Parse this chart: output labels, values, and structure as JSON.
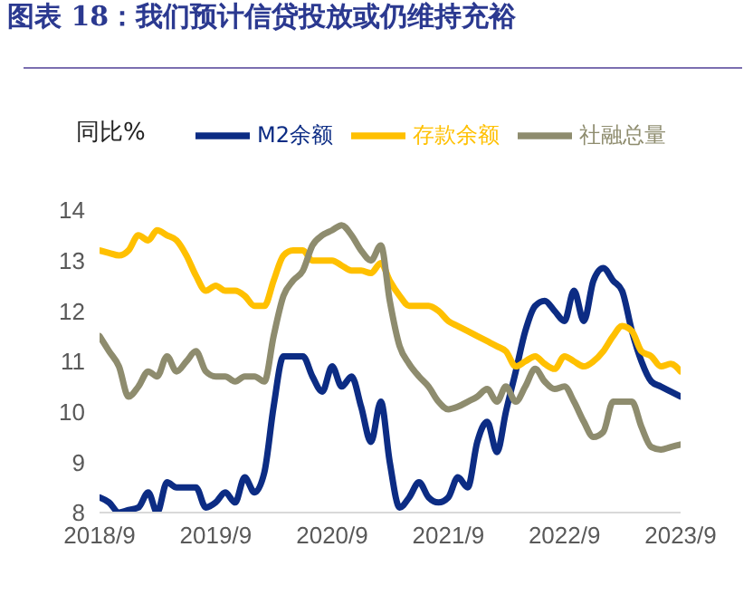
{
  "chart_data": {
    "type": "line",
    "title": "图表 18：我们预计信贷投放或仍维持充裕",
    "ylabel": "同比%",
    "x": [
      "2018-09",
      "2018-10",
      "2018-11",
      "2018-12",
      "2019-01",
      "2019-02",
      "2019-03",
      "2019-04",
      "2019-05",
      "2019-06",
      "2019-07",
      "2019-08",
      "2019-09",
      "2019-10",
      "2019-11",
      "2019-12",
      "2020-01",
      "2020-02",
      "2020-03",
      "2020-04",
      "2020-05",
      "2020-06",
      "2020-07",
      "2020-08",
      "2020-09",
      "2020-10",
      "2020-11",
      "2020-12",
      "2021-01",
      "2021-02",
      "2021-03",
      "2021-04",
      "2021-05",
      "2021-06",
      "2021-07",
      "2021-08",
      "2021-09",
      "2021-10",
      "2021-11",
      "2021-12",
      "2022-01",
      "2022-02",
      "2022-03",
      "2022-04",
      "2022-05",
      "2022-06",
      "2022-07",
      "2022-08",
      "2022-09",
      "2022-10",
      "2022-11",
      "2022-12",
      "2023-01",
      "2023-02",
      "2023-03",
      "2023-04",
      "2023-05",
      "2023-06",
      "2023-07",
      "2023-08",
      "2023-09"
    ],
    "series": [
      {
        "name": "M2余额",
        "color": "#0c2c84",
        "values": [
          8.3,
          8.2,
          8.0,
          8.05,
          8.1,
          8.4,
          8.0,
          8.6,
          8.5,
          8.5,
          8.5,
          8.1,
          8.2,
          8.4,
          8.2,
          8.7,
          8.4,
          8.8,
          10.1,
          11.1,
          11.1,
          11.1,
          10.7,
          10.4,
          10.9,
          10.5,
          10.7,
          10.1,
          9.4,
          10.2,
          9.0,
          8.1,
          8.3,
          8.6,
          8.3,
          8.2,
          8.3,
          8.7,
          8.5,
          9.4,
          9.8,
          9.2,
          10.0,
          10.8,
          11.6,
          12.1,
          12.2,
          12.0,
          11.8,
          12.4,
          11.8,
          12.6,
          12.85,
          12.6,
          12.4,
          11.6,
          11.0,
          10.6,
          10.5,
          10.4,
          10.3
        ]
      },
      {
        "name": "存款余额",
        "color": "#ffc000",
        "values": [
          13.2,
          13.15,
          13.1,
          13.2,
          13.5,
          13.4,
          13.6,
          13.5,
          13.4,
          13.1,
          12.7,
          12.4,
          12.5,
          12.4,
          12.4,
          12.3,
          12.1,
          12.1,
          12.6,
          13.1,
          13.2,
          13.2,
          13.0,
          13.0,
          13.0,
          12.9,
          12.8,
          12.8,
          12.75,
          12.95,
          12.6,
          12.3,
          12.1,
          12.1,
          12.1,
          12.0,
          11.8,
          11.7,
          11.6,
          11.5,
          11.4,
          11.3,
          11.2,
          10.9,
          11.0,
          11.1,
          10.95,
          10.85,
          11.1,
          11.0,
          10.9,
          11.0,
          11.2,
          11.5,
          11.7,
          11.6,
          11.2,
          11.1,
          10.9,
          10.95,
          10.8
        ]
      },
      {
        "name": "社融总量",
        "color": "#8e8c6e",
        "values": [
          11.5,
          11.2,
          10.9,
          10.3,
          10.5,
          10.8,
          10.7,
          11.1,
          10.8,
          11.0,
          11.2,
          10.8,
          10.7,
          10.7,
          10.6,
          10.7,
          10.7,
          10.6,
          11.5,
          12.3,
          12.6,
          12.8,
          13.3,
          13.5,
          13.6,
          13.7,
          13.5,
          13.2,
          13.0,
          13.3,
          12.2,
          11.3,
          10.95,
          10.7,
          10.5,
          10.2,
          10.05,
          10.1,
          10.2,
          10.3,
          10.45,
          10.2,
          10.5,
          10.2,
          10.5,
          10.85,
          10.6,
          10.45,
          10.5,
          10.2,
          9.8,
          9.5,
          9.6,
          10.2,
          10.2,
          10.2,
          9.7,
          9.3,
          9.25,
          9.3,
          9.35
        ]
      }
    ],
    "xlim": [
      "2018-09",
      "2023-09"
    ],
    "xticks": [
      {
        "value": "2018-09",
        "label": "2018/9"
      },
      {
        "value": "2019-09",
        "label": "2019/9"
      },
      {
        "value": "2020-09",
        "label": "2020/9"
      },
      {
        "value": "2021-09",
        "label": "2021/9"
      },
      {
        "value": "2022-09",
        "label": "2022/9"
      },
      {
        "value": "2023-09",
        "label": "2023/9"
      }
    ],
    "ylim": [
      8,
      14
    ],
    "yticks": [
      8,
      9,
      10,
      11,
      12,
      13,
      14
    ],
    "grid": false,
    "legend": "top",
    "marker": "none",
    "line_style": "solid"
  }
}
